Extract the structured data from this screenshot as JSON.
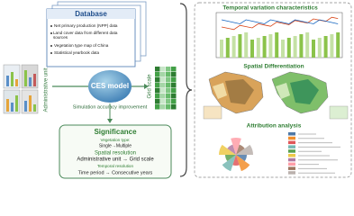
{
  "database": {
    "title": "Database",
    "items": [
      "Net primary production (NPP) data",
      "Land cover data from different data sources",
      "Vegetation type map of China",
      "Statistical yearbook data"
    ]
  },
  "left_label": "Administrative unit",
  "center": {
    "model": "CES model",
    "arrow_label": "Simulation accuracy improvement",
    "right_label": "Grid scale"
  },
  "significance": {
    "title": "Significance",
    "sections": [
      {
        "heading": "Vegetation type:",
        "text": "Single→Multiple"
      },
      {
        "heading": "Spatial resolution",
        "text": "Administrative unit → Grid scale"
      },
      {
        "heading": "Temporal resolution",
        "text": "Time period → Consecutive years"
      }
    ]
  },
  "results": {
    "panels": [
      {
        "title": "Temporal variation characteristics"
      },
      {
        "title": "Spatial Differentiation"
      },
      {
        "title": "Attribution analysis"
      }
    ]
  }
}
